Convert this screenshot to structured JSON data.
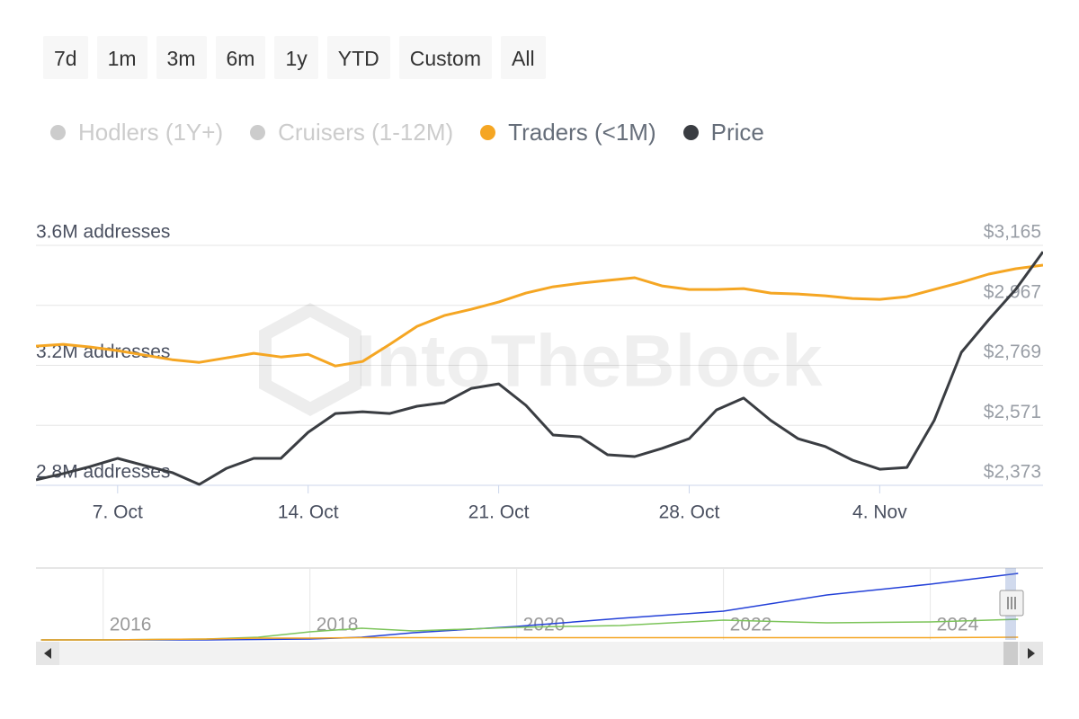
{
  "chart_data": {
    "type": "line",
    "range_buttons": [
      "7d",
      "1m",
      "3m",
      "6m",
      "1y",
      "YTD",
      "Custom",
      "All"
    ],
    "watermark": "IntoTheBlock",
    "categories": [
      null,
      null,
      null,
      "7. Oct",
      null,
      null,
      null,
      null,
      null,
      null,
      "14. Oct",
      null,
      null,
      null,
      null,
      null,
      null,
      "21. Oct",
      null,
      null,
      null,
      null,
      null,
      null,
      "28. Oct",
      null,
      null,
      null,
      null,
      null,
      null,
      "4. Nov",
      null,
      null,
      null,
      null,
      null,
      null
    ],
    "ylim": [
      2800000,
      3600000
    ],
    "yticks": [
      {
        "value": 2800000,
        "label": "2.8M addresses"
      },
      {
        "value": 3200000,
        "label": "3.2M addresses"
      },
      {
        "value": 3600000,
        "label": "3.6M addresses"
      }
    ],
    "y2lim": [
      2373,
      3165
    ],
    "y2ticks": [
      {
        "value": 2373,
        "label": "$2,373"
      },
      {
        "value": 2571,
        "label": "$2,571"
      },
      {
        "value": 2769,
        "label": "$2,769"
      },
      {
        "value": 2967,
        "label": "$2,967"
      },
      {
        "value": 3165,
        "label": "$3,165"
      }
    ],
    "grid": true,
    "series": [
      {
        "name": "Hodlers (1Y+)",
        "color": "#2340d8",
        "visible": false,
        "navigator_values": [
          0,
          0,
          0,
          0.5,
          1,
          3,
          8,
          15,
          24,
          32,
          50,
          62,
          74
        ]
      },
      {
        "name": "Cruisers (1-12M)",
        "color": "#7cc45a",
        "visible": false,
        "navigator_values": [
          0,
          0,
          1,
          3,
          9,
          13,
          10,
          14,
          16,
          22,
          19,
          20,
          23
        ]
      },
      {
        "name": "Traders (<1M)",
        "color": "#f5a623",
        "visible": true,
        "values": [
          3264000,
          3270000,
          3261000,
          3249000,
          3234000,
          3219000,
          3210000,
          3225000,
          3240000,
          3228000,
          3237000,
          3198000,
          3213000,
          3270000,
          3330000,
          3366000,
          3387000,
          3411000,
          3441000,
          3462000,
          3474000,
          3483000,
          3492000,
          3465000,
          3453000,
          3453000,
          3456000,
          3441000,
          3438000,
          3432000,
          3423000,
          3420000,
          3429000,
          3453000,
          3477000,
          3504000,
          3522000,
          3534000
        ],
        "navigator_values": [
          0,
          0,
          1,
          2,
          2,
          2.5,
          2.5,
          2.5,
          2.5,
          2.5,
          2.5,
          2.5,
          3
        ]
      },
      {
        "name": "Price",
        "color": "#3a3d42",
        "visible": true,
        "axis": "y2",
        "values": [
          2391,
          2412,
          2435,
          2462,
          2438,
          2415,
          2376,
          2429,
          2462,
          2462,
          2548,
          2610,
          2616,
          2610,
          2634,
          2646,
          2693,
          2708,
          2637,
          2539,
          2533,
          2474,
          2468,
          2495,
          2527,
          2622,
          2661,
          2587,
          2527,
          2501,
          2456,
          2426,
          2432,
          2587,
          2812,
          2919,
          3020,
          3144
        ]
      }
    ],
    "navigator": {
      "x": [
        2015.4,
        2016,
        2017,
        2017.5,
        2018,
        2018.5,
        2019,
        2020,
        2021,
        2022,
        2023,
        2024,
        2024.85
      ],
      "xlim": [
        2015.35,
        2024.83
      ],
      "xticks": [
        2016,
        2018,
        2020,
        2022,
        2024
      ],
      "ylim": [
        0,
        80
      ]
    }
  }
}
